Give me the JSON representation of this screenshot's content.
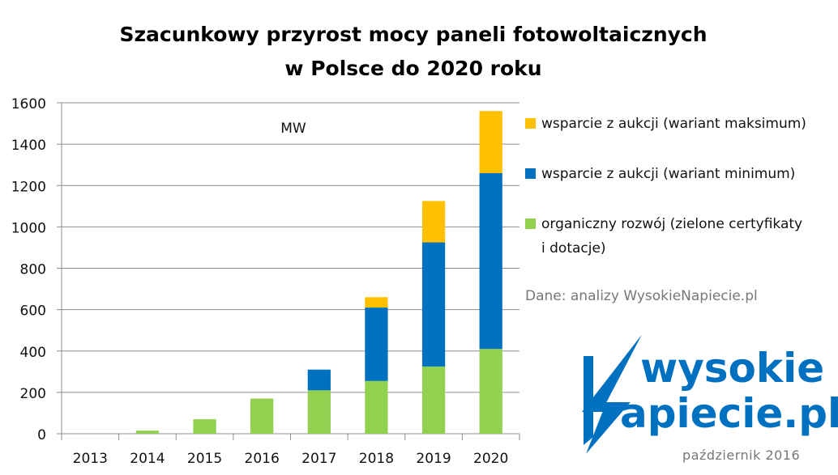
{
  "chart_data": {
    "type": "bar",
    "stacked": true,
    "title": "Szacunkowy przyrost mocy  paneli fotowoltaicznych w Polsce do 2020 roku",
    "title_lines": [
      "Szacunkowy przyrost mocy  paneli fotowoltaicznych",
      "w Polsce do 2020 roku"
    ],
    "unit_label": "MW",
    "categories": [
      "2013",
      "2014",
      "2015",
      "2016",
      "2017",
      "2018",
      "2019",
      "2020"
    ],
    "series": [
      {
        "name": "organiczny rozwój (zielone certyfikaty i dotacje)",
        "color": "#92d050",
        "values": [
          0,
          15,
          70,
          170,
          210,
          255,
          325,
          410
        ]
      },
      {
        "name": "wsparcie z aukcji (wariant minimum)",
        "color": "#0070c0",
        "values": [
          0,
          0,
          0,
          0,
          100,
          355,
          600,
          850
        ]
      },
      {
        "name": "wsparcie z aukcji (wariant maksimum)",
        "color": "#ffc000",
        "values": [
          0,
          0,
          0,
          0,
          0,
          50,
          200,
          300
        ]
      }
    ],
    "ylim": [
      0,
      1600
    ],
    "yticks": [
      "0",
      "200",
      "400",
      "600",
      "800",
      "1000",
      "1200",
      "1400",
      "1600"
    ],
    "grid": true,
    "legend_position": "right"
  },
  "legend": {
    "items": [
      {
        "lines": [
          "wsparcie z aukcji (wariant maksimum)"
        ],
        "color": "#ffc000"
      },
      {
        "lines": [
          "wsparcie z aukcji (wariant minimum)"
        ],
        "color": "#0070c0"
      },
      {
        "lines": [
          "organiczny rozwój (zielone certyfikaty",
          "i dotacje)"
        ],
        "color": "#92d050"
      }
    ]
  },
  "source_note": "Dane: analizy WysokieNapiecie.pl",
  "logo": {
    "line1": "wysokie",
    "line2": "apiecie.pl",
    "text": "WysokieNapiecie.pl",
    "color": "#0070c0"
  },
  "date_label": "październik 2016"
}
